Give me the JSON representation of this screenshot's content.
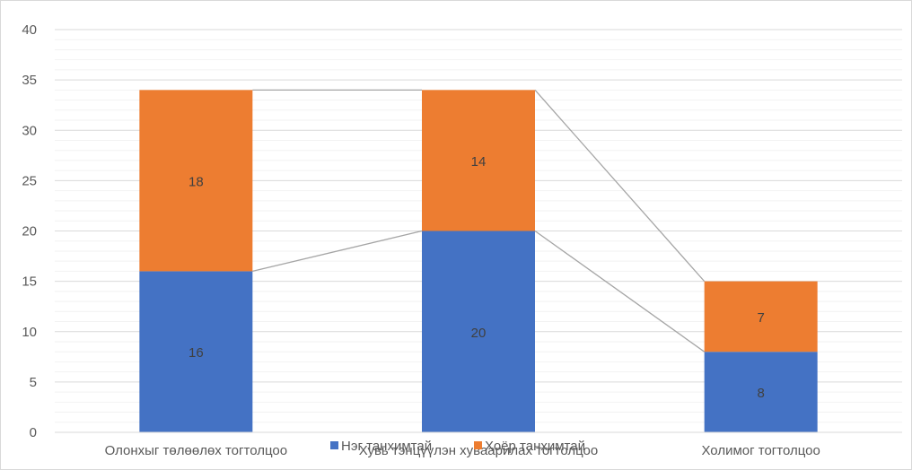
{
  "chart_data": {
    "type": "bar",
    "stacked": true,
    "categories": [
      "Олонхыг төлөөлөх тогтолцоо",
      "Хувь тэнцүүлэн хуваарилах тогтолцоо",
      "Холимог тогтолцоо"
    ],
    "series": [
      {
        "name": "Нэг танхимтай",
        "color": "#4472c4",
        "values": [
          16,
          20,
          8
        ]
      },
      {
        "name": "Хоёр танхимтай",
        "color": "#ed7d31",
        "values": [
          18,
          14,
          7
        ]
      }
    ],
    "data_labels": true,
    "series_lines": true,
    "ylim": [
      0,
      40
    ],
    "ymajor": 5,
    "yminor": 1,
    "yticks": [
      "0",
      "5",
      "10",
      "15",
      "20",
      "25",
      "30",
      "35",
      "40"
    ],
    "grid": true,
    "legend": "bottom",
    "title": "",
    "xlabel": "",
    "ylabel": ""
  }
}
